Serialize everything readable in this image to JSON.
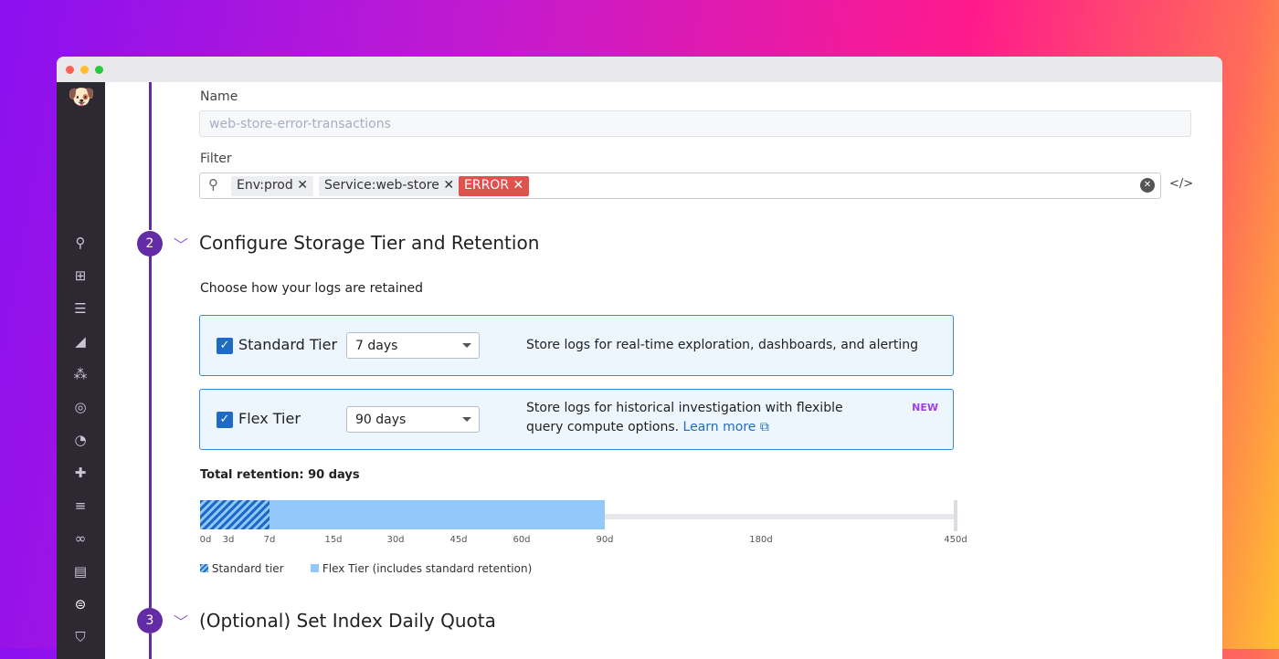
{
  "window": {
    "traffic_lights": [
      "#ff5f57",
      "#febc2e",
      "#28c840"
    ]
  },
  "sidebar": {
    "icons": [
      "search-icon",
      "binoculars-icon",
      "list-icon",
      "chart-icon",
      "nodes-icon",
      "target-icon",
      "gauge-icon",
      "puzzle-icon",
      "filter-lines-icon",
      "link-icon",
      "book-icon",
      "logs-icon",
      "shield-icon"
    ]
  },
  "form": {
    "name_label": "Name",
    "name_value": "web-store-error-transactions",
    "filter_label": "Filter",
    "filter_tags": [
      {
        "label": "Env:prod"
      },
      {
        "label": "Service:web-store"
      },
      {
        "label": "ERROR",
        "color": "#e0524d"
      }
    ]
  },
  "steps": [
    {
      "number": "2",
      "title": "Configure Storage Tier and Retention"
    },
    {
      "number": "3",
      "title": "(Optional) Set Index Daily Quota"
    }
  ],
  "retention": {
    "intro": "Choose how your logs are retained",
    "tiers": [
      {
        "name": "Standard Tier",
        "checked": true,
        "value": "7 days",
        "desc": "Store logs for real-time exploration, dashboards, and alerting"
      },
      {
        "name": "Flex Tier",
        "checked": true,
        "value": "90 days",
        "desc": "Store logs for historical investigation with flexible query compute options.",
        "link": "Learn more",
        "badge": "NEW"
      }
    ],
    "total": "Total retention: 90 days",
    "ticks": [
      "0d",
      "3d",
      "7d",
      "15d",
      "30d",
      "45d",
      "60d",
      "90d",
      "180d",
      "450d"
    ],
    "standard_days": 7,
    "flex_days": 90,
    "max_days": 450,
    "legend": [
      "Standard tier",
      "Flex Tier (includes standard retention)"
    ],
    "colors": {
      "accent": "#632ca6",
      "flex": "#93c8fb",
      "standard": "#1e6bc6"
    }
  }
}
